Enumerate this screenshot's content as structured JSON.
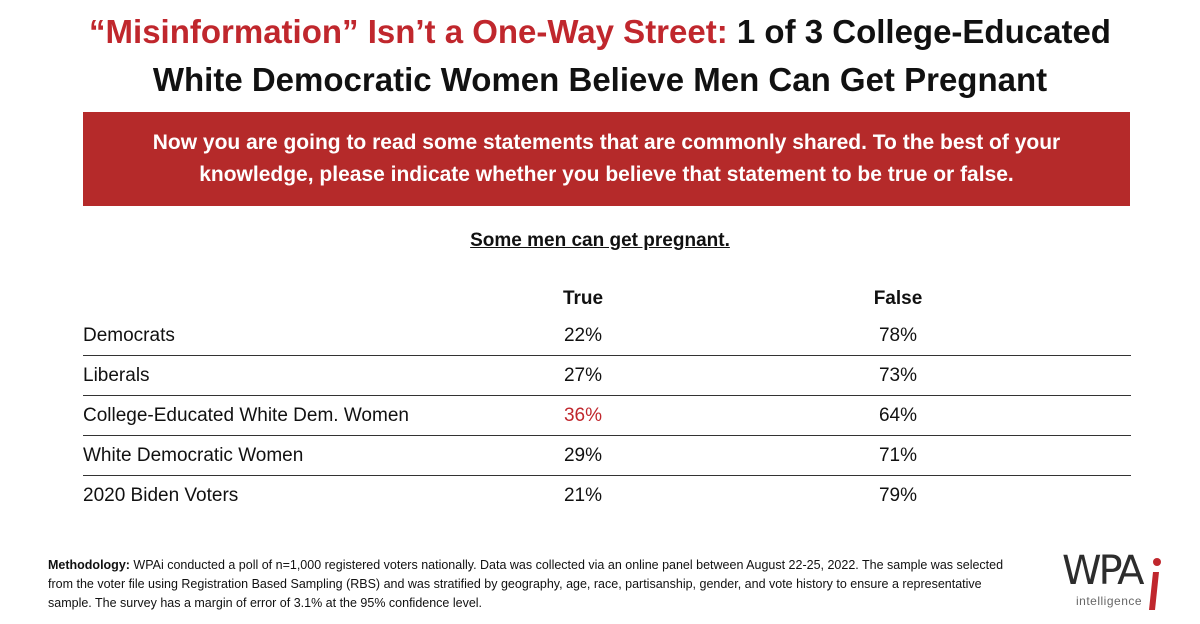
{
  "header": {
    "title_accent": "“Misinformation” Isn’t a One-Way Street:",
    "title_rest_line1": " 1 of 3 College-Educated",
    "title_line2": "White Democratic Women Believe Men Can Get Pregnant"
  },
  "banner": {
    "text": "Now you are going to read some statements that are commonly shared. To the best of your knowledge, please indicate whether you believe that statement to be true or false."
  },
  "chart_data": {
    "type": "table",
    "statement": "Some men can get pregnant.",
    "columns": [
      "True",
      "False"
    ],
    "rows": [
      {
        "group": "Democrats",
        "true": "22%",
        "false": "78%"
      },
      {
        "group": "Liberals",
        "true": "27%",
        "false": "73%"
      },
      {
        "group": "College-Educated White Dem. Women",
        "true": "36%",
        "false": "64%"
      },
      {
        "group": "White Democratic Women",
        "true": "29%",
        "false": "71%"
      },
      {
        "group": "2020 Biden Voters",
        "true": "21%",
        "false": "79%"
      }
    ],
    "highlight_color": "#c0272d",
    "highlighted_row": "College-Educated White Dem. Women"
  },
  "methodology": {
    "label": "Methodology:",
    "text": " WPAi conducted a poll of n=1,000 registered voters nationally. Data was collected via an online panel between August 22-25, 2022. The sample was selected from the voter file using Registration Based Sampling (RBS) and was stratified by geography, age, race, partisanship, gender, and vote history to ensure a representative sample. The survey has a margin of error of 3.1% at the 95% confidence level."
  },
  "logo": {
    "wordmark": "WPA",
    "subtitle": "intelligence",
    "icon": "wpai-logo-i-mark"
  },
  "colors": {
    "accent": "#c0272d",
    "banner_bg": "#b52a2a"
  }
}
